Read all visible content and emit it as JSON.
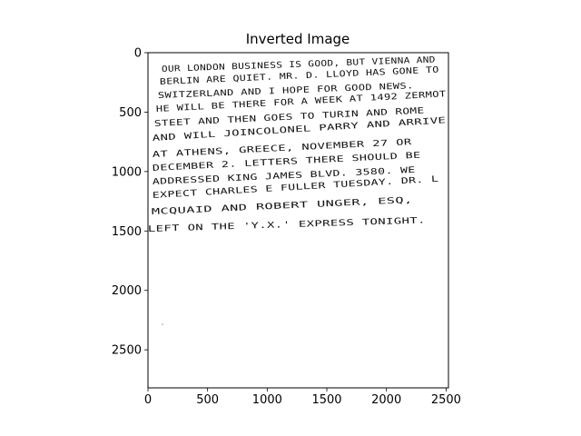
{
  "figure": {
    "title": "Inverted Image"
  },
  "chart_data": {
    "type": "image",
    "title": "Inverted Image",
    "xlabel": "",
    "ylabel": "",
    "xlim": [
      0,
      2520
    ],
    "ylim": [
      2820,
      0
    ],
    "x_ticks": [
      0,
      500,
      1000,
      1500,
      2000,
      2500
    ],
    "y_ticks": [
      0,
      500,
      1000,
      1500,
      2000,
      2500
    ],
    "grid": false,
    "image_content": {
      "description_type": "handwritten text on white background",
      "lines": [
        "OUR LONDON BUSINESS IS GOOD, BUT VIENNA AND",
        "BERLIN ARE QUIET. MR. D. LLOYD HAS GONE TO",
        "SWITZERLAND AND I HOPE FOR GOOD NEWS.",
        "HE WILL BE THERE FOR A WEEK AT 1492 ZERMOT",
        "STEET AND THEN GOES TO TURIN AND ROME",
        "AND WILL JOINCOLONEL PARRY AND ARRIVE",
        "AT ATHENS, GREECE, NOVEMBER 27 OR",
        "DECEMBER 2. LETTERS THERE SHOULD BE",
        "ADDRESSED KING JAMES BLVD. 3580. WE",
        "EXPECT CHARLES E FULLER TUESDAY. DR. L",
        "MCQUAID AND ROBERT UNGER, ESQ,",
        "LEFT ON THE 'Y.X.' EXPRESS TONIGHT."
      ]
    }
  }
}
